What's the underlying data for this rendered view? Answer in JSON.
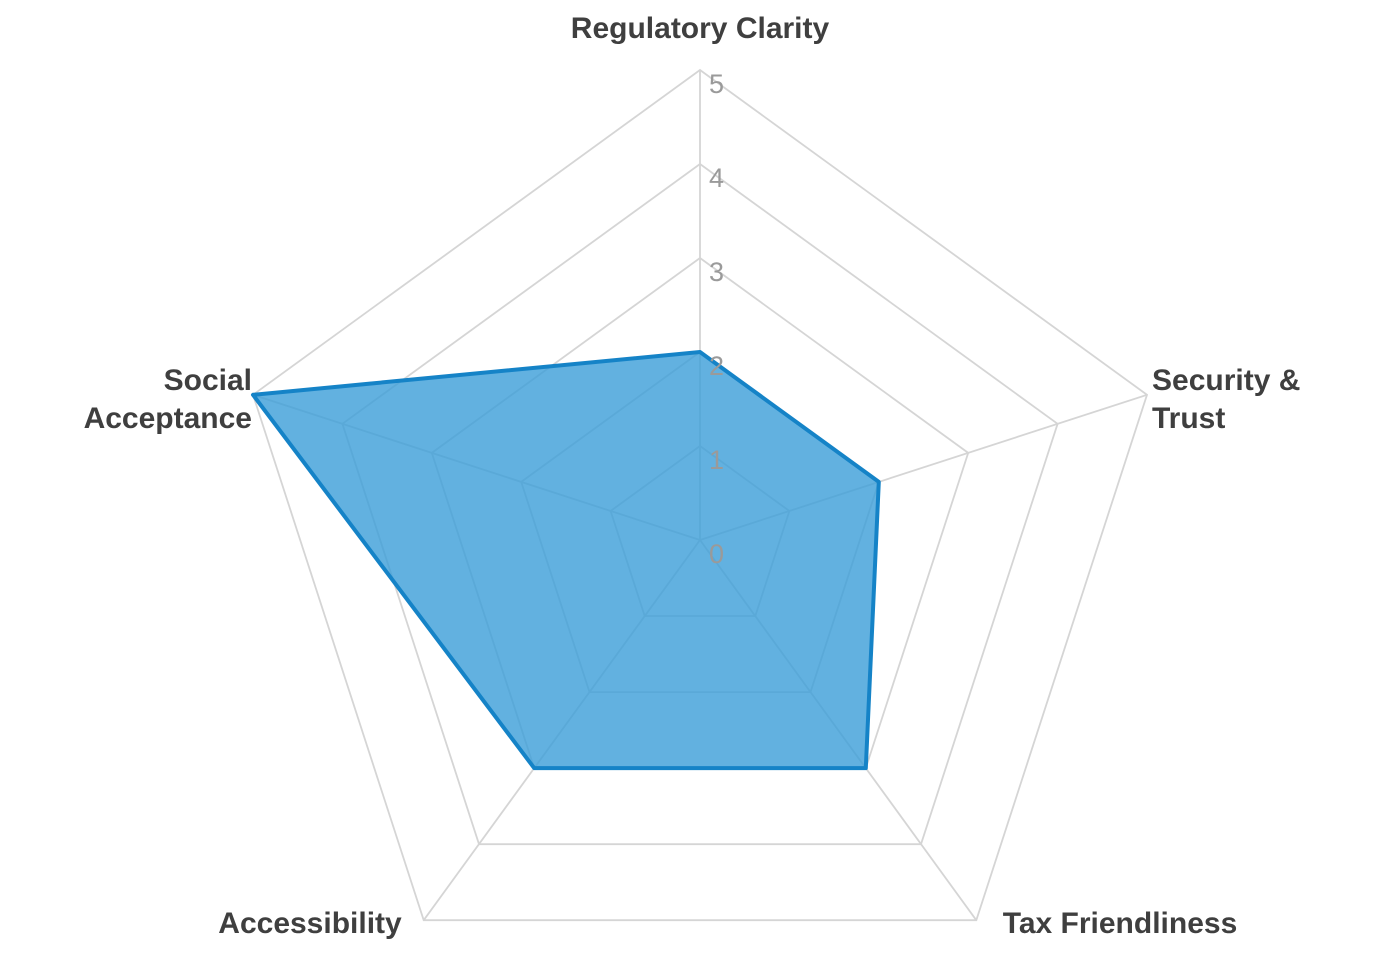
{
  "chart_data": {
    "type": "radar",
    "title": "",
    "categories": [
      "Regulatory Clarity",
      "Security & Trust",
      "Tax Friendliness",
      "Accessibility",
      "Social Acceptance"
    ],
    "values": [
      2,
      2,
      3,
      3,
      5
    ],
    "ticks": [
      0,
      1,
      2,
      3,
      4,
      5
    ],
    "value_range": [
      0,
      5
    ],
    "legend": "none",
    "grid": "pentagon-rings",
    "colors": {
      "fill": "#3b9dd8",
      "fill_opacity": 0.8,
      "stroke": "#1583c7",
      "grid_line": "#d5d5d5",
      "axis_label": "#3f3f3f",
      "tick_label": "#9a9a9a",
      "background": "#ffffff"
    }
  }
}
